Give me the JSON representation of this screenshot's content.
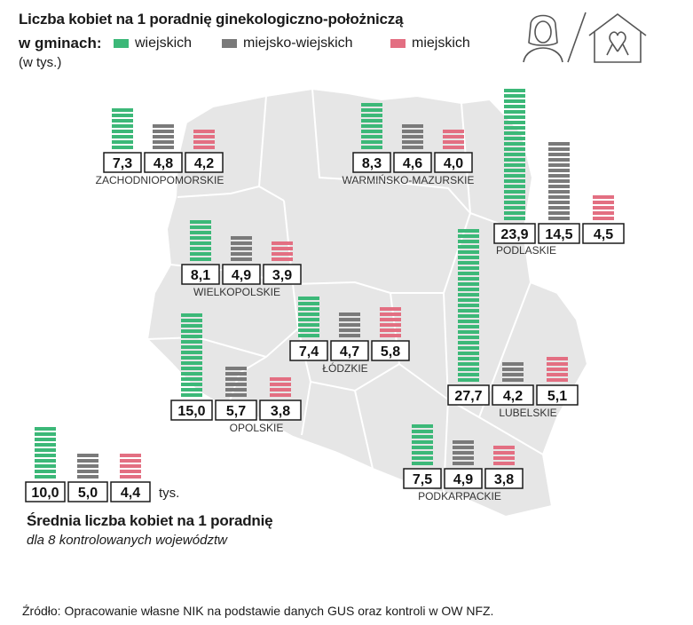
{
  "chart_data": {
    "type": "bar",
    "title": "Liczba kobiet na 1 poradnię ginekologiczno-położniczą",
    "title_line2": "w gminach:",
    "unit_note": "(w tys.)",
    "series": [
      {
        "name": "wiejskich",
        "color": "#3cb878"
      },
      {
        "name": "miejsko-wiejskich",
        "color": "#7a7a7a"
      },
      {
        "name": "miejskich",
        "color": "#e36f82"
      }
    ],
    "regions": [
      {
        "name": "ZACHODNIOPOMORSKIE",
        "values": [
          7.3,
          4.8,
          4.2
        ],
        "labels": [
          "7,3",
          "4,8",
          "4,2"
        ]
      },
      {
        "name": "WARMIŃSKO-MAZURSKIE",
        "values": [
          8.3,
          4.6,
          4.0
        ],
        "labels": [
          "8,3",
          "4,6",
          "4,0"
        ]
      },
      {
        "name": "PODLASKIE",
        "values": [
          23.9,
          14.5,
          4.5
        ],
        "labels": [
          "23,9",
          "14,5",
          "4,5"
        ]
      },
      {
        "name": "WIELKOPOLSKIE",
        "values": [
          8.1,
          4.9,
          3.9
        ],
        "labels": [
          "8,1",
          "4,9",
          "3,9"
        ]
      },
      {
        "name": "ŁÓDZKIE",
        "values": [
          7.4,
          4.7,
          5.8
        ],
        "labels": [
          "7,4",
          "4,7",
          "5,8"
        ]
      },
      {
        "name": "OPOLSKIE",
        "values": [
          15.0,
          5.7,
          3.8
        ],
        "labels": [
          "15,0",
          "5,7",
          "3,8"
        ]
      },
      {
        "name": "LUBELSKIE",
        "values": [
          27.7,
          4.2,
          5.1
        ],
        "labels": [
          "27,7",
          "4,2",
          "5,1"
        ]
      },
      {
        "name": "PODKARPACKIE",
        "values": [
          7.5,
          4.9,
          3.8
        ],
        "labels": [
          "7,5",
          "4,9",
          "3,8"
        ]
      }
    ],
    "average": {
      "values": [
        10.0,
        5.0,
        4.4
      ],
      "labels": [
        "10,0",
        "5,0",
        "4,4"
      ],
      "unit": "tys.",
      "title": "Średnia liczba kobiet na 1 poradnię",
      "subtitle": "dla 8 kontrolowanych województw"
    },
    "source": "Źródło: Opracowanie  własne NIK na podstawie  danych GUS oraz kontroli w OW NFZ.",
    "icons": [
      "woman-icon",
      "house-ribbon-icon"
    ]
  }
}
